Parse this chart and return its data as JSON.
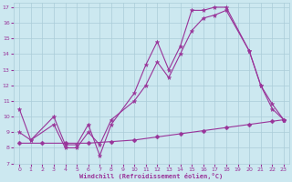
{
  "xlabel": "Windchill (Refroidissement éolien,°C)",
  "background_color": "#cce8f0",
  "grid_color": "#aaccd8",
  "line_color": "#993399",
  "xlim": [
    -0.5,
    23.5
  ],
  "ylim": [
    7,
    17.3
  ],
  "xticks": [
    0,
    1,
    2,
    3,
    4,
    5,
    6,
    7,
    8,
    9,
    10,
    11,
    12,
    13,
    14,
    15,
    16,
    17,
    18,
    19,
    20,
    21,
    22,
    23
  ],
  "yticks": [
    7,
    8,
    9,
    10,
    11,
    12,
    13,
    14,
    15,
    16,
    17
  ],
  "series": [
    {
      "x": [
        0,
        1,
        3,
        4,
        5,
        6,
        7,
        8,
        10,
        11,
        12,
        13,
        14,
        15,
        16,
        17,
        18,
        20,
        21,
        22,
        23
      ],
      "y": [
        10.5,
        8.5,
        10.0,
        8.2,
        8.2,
        9.5,
        7.5,
        9.5,
        11.5,
        13.3,
        14.8,
        13.0,
        14.5,
        16.8,
        16.8,
        17.0,
        17.0,
        14.2,
        12.0,
        10.8,
        9.8
      ]
    },
    {
      "x": [
        0,
        1,
        3,
        4,
        5,
        6,
        7,
        8,
        10,
        11,
        12,
        13,
        14,
        15,
        16,
        17,
        18,
        20,
        21,
        22,
        23
      ],
      "y": [
        9.0,
        8.5,
        9.5,
        8.0,
        8.0,
        9.0,
        8.2,
        9.8,
        11.0,
        12.0,
        13.5,
        12.5,
        14.0,
        15.5,
        16.3,
        16.5,
        16.8,
        14.2,
        12.0,
        10.5,
        9.8
      ]
    },
    {
      "x": [
        0,
        2,
        4,
        6,
        8,
        10,
        12,
        14,
        16,
        18,
        20,
        22,
        23
      ],
      "y": [
        8.3,
        8.3,
        8.3,
        8.3,
        8.4,
        8.5,
        8.7,
        8.9,
        9.1,
        9.3,
        9.5,
        9.7,
        9.8
      ]
    }
  ]
}
